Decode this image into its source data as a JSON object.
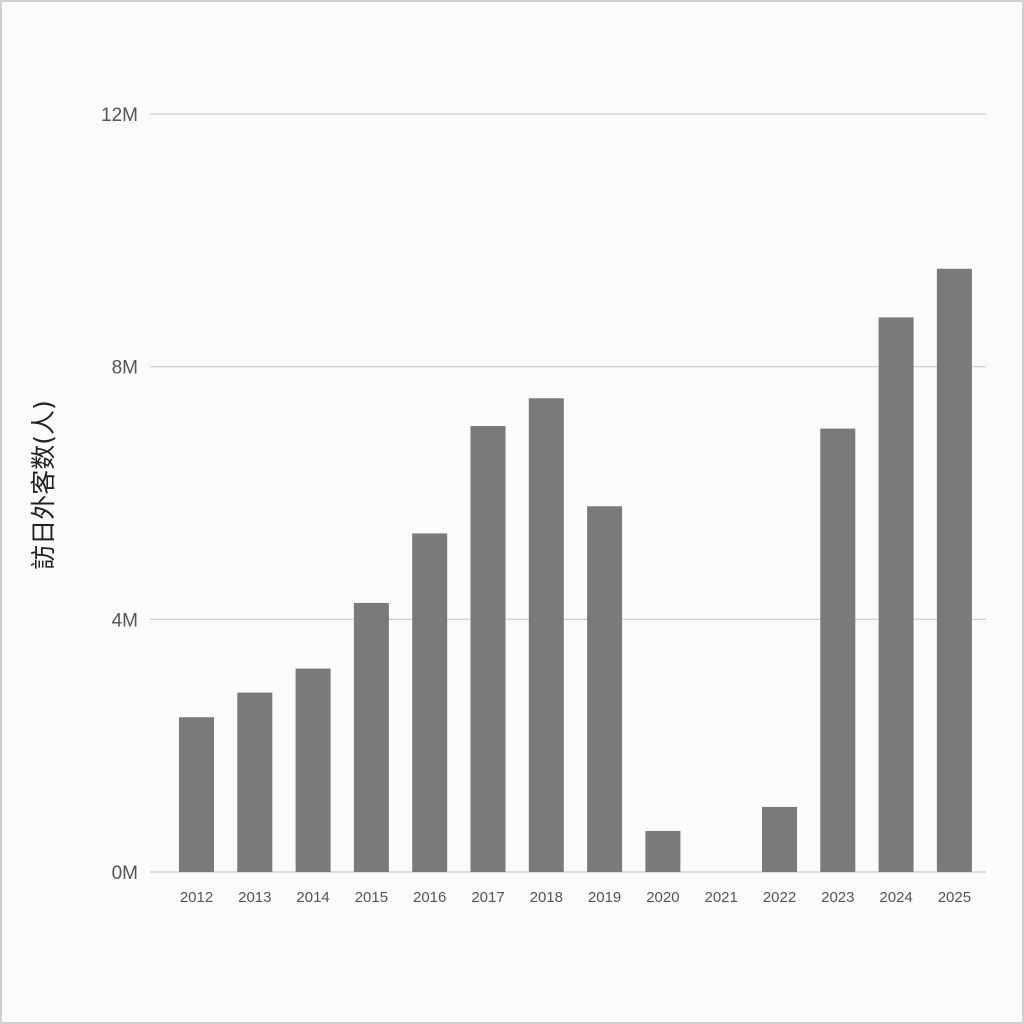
{
  "chart_data": {
    "type": "bar",
    "title": "",
    "xlabel": "",
    "ylabel": "訪日外客数(人)",
    "categories": [
      "2012",
      "2013",
      "2014",
      "2015",
      "2016",
      "2017",
      "2018",
      "2019",
      "2020",
      "2021",
      "2022",
      "2023",
      "2024",
      "2025"
    ],
    "values": [
      2450000,
      2840000,
      3220000,
      4260000,
      5360000,
      7060000,
      7500000,
      5790000,
      650000,
      0,
      1030000,
      7020000,
      8780000,
      9550000
    ],
    "ylim": [
      0,
      12000000
    ],
    "yticks": [
      0,
      4000000,
      8000000,
      12000000
    ],
    "ytick_labels": [
      "0M",
      "4M",
      "8M",
      "12M"
    ],
    "grid": true,
    "legend": "none",
    "colors": {
      "bar": "#7a7a7a",
      "grid": "#c8c8d0",
      "background": "#fbfbfb"
    }
  }
}
